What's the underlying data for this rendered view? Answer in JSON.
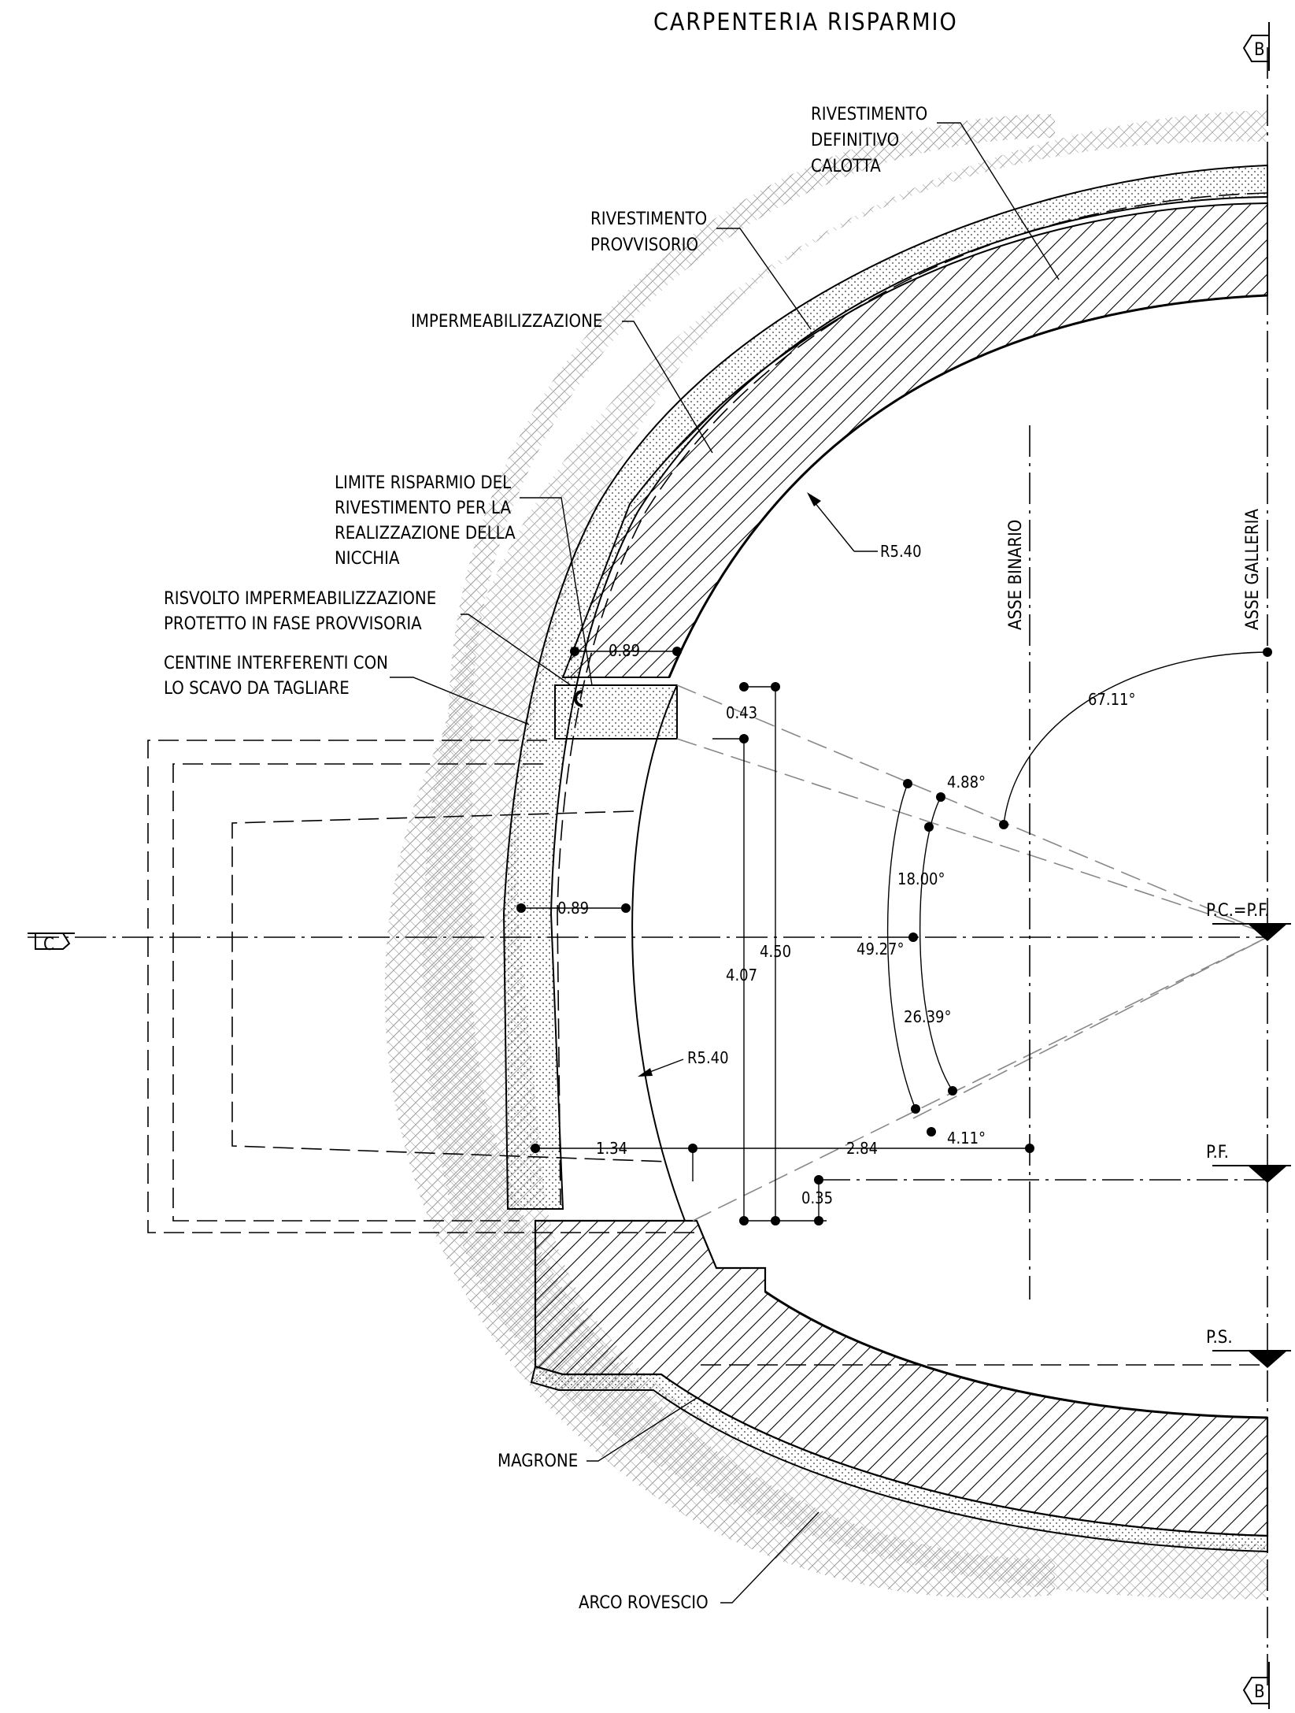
{
  "title": "CARPENTERIA RISPARMIO",
  "section_marks": {
    "top": "B",
    "bottom": "B",
    "left": "C"
  },
  "labels": {
    "rivestimento_definitivo": [
      "RIVESTIMENTO",
      "DEFINITIVO",
      "CALOTTA"
    ],
    "rivestimento_provvisorio": [
      "RIVESTIMENTO",
      "PROVVISORIO"
    ],
    "impermeabilizzazione": "IMPERMEABILIZZAZIONE",
    "limite_risparmio": [
      "LIMITE RISPARMIO DEL",
      "RIVESTIMENTO PER LA",
      "REALIZZAZIONE DELLA",
      "NICCHIA"
    ],
    "risvolto": [
      "RISVOLTO IMPERMEABILIZZAZIONE",
      "PROTETTO IN FASE PROVVISORIA"
    ],
    "centine": [
      "CENTINE INTERFERENTI CON",
      "LO SCAVO DA TAGLIARE"
    ],
    "magrone": "MAGRONE",
    "arco_rovescio": "ARCO ROVESCIO",
    "asse_binario": "ASSE BINARIO",
    "asse_galleria": "ASSE GALLERIA",
    "pc_pf": "P.C.=P.F.",
    "pf": "P.F.",
    "ps": "P.S."
  },
  "dimensions": {
    "r_top": "R5.40",
    "r_niche": "R5.40",
    "d_089_top": "0.89",
    "d_043": "0.43",
    "d_089_mid": "0.89",
    "d_450": "4.50",
    "d_407": "4.07",
    "d_134": "1.34",
    "d_284": "2.84",
    "d_035": "0.35",
    "a_6711": "67.11°",
    "a_488": "4.88°",
    "a_1800": "18.00°",
    "a_4927": "49.27°",
    "a_2639": "26.39°",
    "a_411": "4.11°"
  }
}
